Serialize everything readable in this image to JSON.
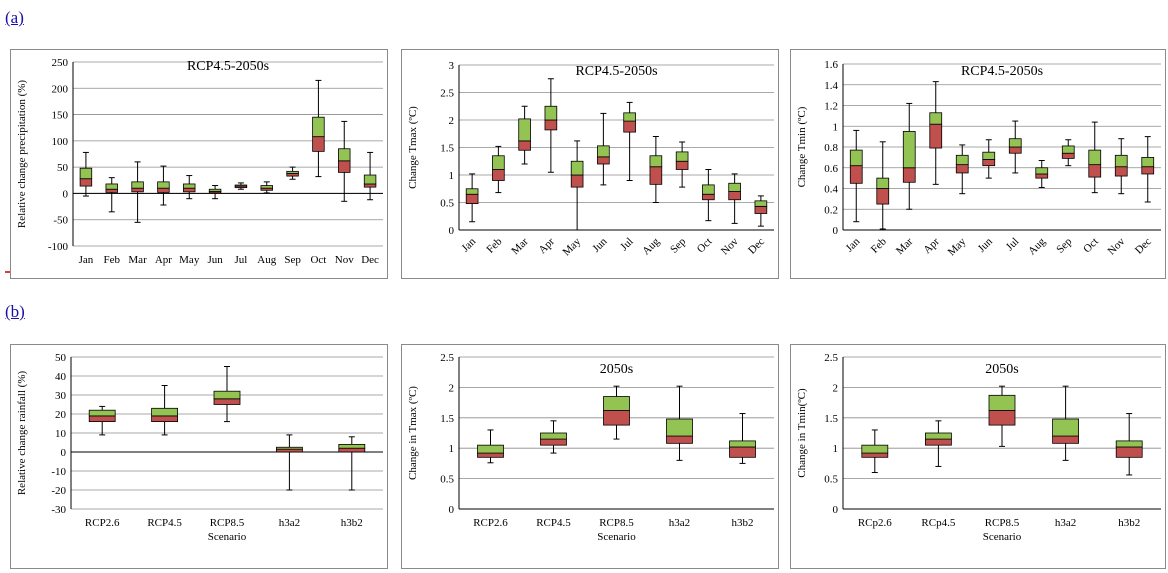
{
  "panels": [
    {
      "label": "(a)"
    },
    {
      "label": "(b)"
    }
  ],
  "chart_data": [
    {
      "type": "box",
      "title": "RCP4.5-2050s",
      "ylabel": "Relative change precipitation (%)",
      "xlabel": "",
      "ylim": [
        -100,
        250
      ],
      "yticks": [
        -100,
        -50,
        0,
        50,
        100,
        150,
        200,
        250
      ],
      "tick_rotate": false,
      "categories": [
        "Jan",
        "Feb",
        "Mar",
        "Apr",
        "May",
        "Jun",
        "Jul",
        "Aug",
        "Sep",
        "Oct",
        "Nov",
        "Dec"
      ],
      "boxes": [
        {
          "min": -5,
          "q1": 14,
          "median": 28,
          "q3": 48,
          "max": 78
        },
        {
          "min": -35,
          "q1": 2,
          "median": 8,
          "q3": 18,
          "max": 30
        },
        {
          "min": -55,
          "q1": 3,
          "median": 10,
          "q3": 22,
          "max": 60
        },
        {
          "min": -22,
          "q1": 2,
          "median": 10,
          "q3": 22,
          "max": 52
        },
        {
          "min": -10,
          "q1": 3,
          "median": 10,
          "q3": 18,
          "max": 34
        },
        {
          "min": -10,
          "q1": 1,
          "median": 4,
          "q3": 8,
          "max": 15
        },
        {
          "min": 8,
          "q1": 11,
          "median": 14,
          "q3": 16,
          "max": 20
        },
        {
          "min": 1,
          "q1": 6,
          "median": 10,
          "q3": 15,
          "max": 22
        },
        {
          "min": 27,
          "q1": 33,
          "median": 38,
          "q3": 42,
          "max": 50
        },
        {
          "min": 32,
          "q1": 80,
          "median": 108,
          "q3": 145,
          "max": 215
        },
        {
          "min": -15,
          "q1": 40,
          "median": 62,
          "q3": 85,
          "max": 137
        },
        {
          "min": -12,
          "q1": 12,
          "median": 18,
          "q3": 35,
          "max": 78
        }
      ]
    },
    {
      "type": "box",
      "title": "RCP4.5-2050s",
      "ylabel": "Change Tmax (ºC)",
      "xlabel": "",
      "ylim": [
        0,
        3
      ],
      "yticks": [
        0,
        0.5,
        1,
        1.5,
        2,
        2.5,
        3
      ],
      "tick_rotate": true,
      "categories": [
        "Jan",
        "Feb",
        "Mar",
        "Apr",
        "May",
        "Jun",
        "Jul",
        "Aug",
        "Sep",
        "Oct",
        "Nov",
        "Dec"
      ],
      "boxes": [
        {
          "min": 0.15,
          "q1": 0.48,
          "median": 0.65,
          "q3": 0.75,
          "max": 1.02
        },
        {
          "min": 0.68,
          "q1": 0.9,
          "median": 1.1,
          "q3": 1.35,
          "max": 1.52
        },
        {
          "min": 1.2,
          "q1": 1.45,
          "median": 1.62,
          "q3": 2.02,
          "max": 2.25
        },
        {
          "min": 1.05,
          "q1": 1.82,
          "median": 2.0,
          "q3": 2.25,
          "max": 2.75
        },
        {
          "min": 0.0,
          "q1": 0.78,
          "median": 1.0,
          "q3": 1.25,
          "max": 1.62
        },
        {
          "min": 0.82,
          "q1": 1.2,
          "median": 1.33,
          "q3": 1.53,
          "max": 2.12
        },
        {
          "min": 0.9,
          "q1": 1.78,
          "median": 1.98,
          "q3": 2.13,
          "max": 2.32
        },
        {
          "min": 0.5,
          "q1": 0.83,
          "median": 1.15,
          "q3": 1.35,
          "max": 1.7
        },
        {
          "min": 0.78,
          "q1": 1.1,
          "median": 1.25,
          "q3": 1.42,
          "max": 1.6
        },
        {
          "min": 0.17,
          "q1": 0.55,
          "median": 0.65,
          "q3": 0.82,
          "max": 1.1
        },
        {
          "min": 0.12,
          "q1": 0.55,
          "median": 0.7,
          "q3": 0.85,
          "max": 1.02
        },
        {
          "min": 0.07,
          "q1": 0.3,
          "median": 0.43,
          "q3": 0.53,
          "max": 0.62
        }
      ]
    },
    {
      "type": "box",
      "title": "RCP4.5-2050s",
      "ylabel": "Change Tmin (ºC)",
      "xlabel": "",
      "ylim": [
        0,
        1.6
      ],
      "yticks": [
        0,
        0.2,
        0.4,
        0.6,
        0.8,
        1,
        1.2,
        1.4,
        1.6
      ],
      "tick_rotate": true,
      "categories": [
        "Jan",
        "Feb",
        "Mar",
        "Apr",
        "May",
        "Jun",
        "Jul",
        "Aug",
        "Sep",
        "Oct",
        "Nov",
        "Dec"
      ],
      "boxes": [
        {
          "min": 0.08,
          "q1": 0.45,
          "median": 0.62,
          "q3": 0.77,
          "max": 0.96
        },
        {
          "min": 0.01,
          "q1": 0.25,
          "median": 0.4,
          "q3": 0.5,
          "max": 0.85
        },
        {
          "min": 0.2,
          "q1": 0.46,
          "median": 0.6,
          "q3": 0.95,
          "max": 1.22
        },
        {
          "min": 0.44,
          "q1": 0.79,
          "median": 1.02,
          "q3": 1.13,
          "max": 1.43
        },
        {
          "min": 0.35,
          "q1": 0.55,
          "median": 0.63,
          "q3": 0.72,
          "max": 0.82
        },
        {
          "min": 0.5,
          "q1": 0.62,
          "median": 0.68,
          "q3": 0.75,
          "max": 0.87
        },
        {
          "min": 0.55,
          "q1": 0.74,
          "median": 0.8,
          "q3": 0.88,
          "max": 1.05
        },
        {
          "min": 0.41,
          "q1": 0.5,
          "median": 0.54,
          "q3": 0.6,
          "max": 0.67
        },
        {
          "min": 0.62,
          "q1": 0.69,
          "median": 0.74,
          "q3": 0.81,
          "max": 0.87
        },
        {
          "min": 0.36,
          "q1": 0.51,
          "median": 0.63,
          "q3": 0.77,
          "max": 1.04
        },
        {
          "min": 0.35,
          "q1": 0.52,
          "median": 0.61,
          "q3": 0.72,
          "max": 0.88
        },
        {
          "min": 0.27,
          "q1": 0.54,
          "median": 0.61,
          "q3": 0.7,
          "max": 0.9
        }
      ]
    },
    {
      "type": "box",
      "title": "",
      "ylabel": "Relative change rainfall (%)",
      "xlabel": "Scenario",
      "ylim": [
        -30,
        50
      ],
      "yticks": [
        -30,
        -20,
        -10,
        0,
        10,
        20,
        30,
        40,
        50
      ],
      "tick_rotate": false,
      "categories": [
        "RCP2.6",
        "RCP4.5",
        "RCP8.5",
        "h3a2",
        "h3b2"
      ],
      "boxes": [
        {
          "min": 9,
          "q1": 16,
          "median": 19,
          "q3": 22,
          "max": 24
        },
        {
          "min": 9,
          "q1": 16,
          "median": 19,
          "q3": 23,
          "max": 35
        },
        {
          "min": 16,
          "q1": 25,
          "median": 28,
          "q3": 32,
          "max": 45
        },
        {
          "min": -20,
          "q1": 0,
          "median": 1.5,
          "q3": 2.5,
          "max": 9
        },
        {
          "min": -20,
          "q1": 0,
          "median": 2,
          "q3": 4,
          "max": 8
        }
      ]
    },
    {
      "type": "box",
      "title": "2050s",
      "ylabel": "Change in Tmax (ºC)",
      "xlabel": "Scenario",
      "ylim": [
        0,
        2.5
      ],
      "yticks": [
        0,
        0.5,
        1,
        1.5,
        2,
        2.5
      ],
      "tick_rotate": false,
      "categories": [
        "RCP2.6",
        "RCP4.5",
        "RCP8.5",
        "h3a2",
        "h3b2"
      ],
      "boxes": [
        {
          "min": 0.76,
          "q1": 0.85,
          "median": 0.92,
          "q3": 1.05,
          "max": 1.3
        },
        {
          "min": 0.92,
          "q1": 1.05,
          "median": 1.15,
          "q3": 1.25,
          "max": 1.45
        },
        {
          "min": 1.15,
          "q1": 1.38,
          "median": 1.62,
          "q3": 1.85,
          "max": 2.02
        },
        {
          "min": 0.8,
          "q1": 1.08,
          "median": 1.2,
          "q3": 1.48,
          "max": 2.02
        },
        {
          "min": 0.75,
          "q1": 0.85,
          "median": 1.02,
          "q3": 1.12,
          "max": 1.57
        }
      ]
    },
    {
      "type": "box",
      "title": "2050s",
      "ylabel": "Change in Tmin(ºC)",
      "xlabel": "Scenario",
      "ylim": [
        0,
        2.5
      ],
      "yticks": [
        0,
        0.5,
        1,
        1.5,
        2,
        2.5
      ],
      "tick_rotate": false,
      "categories": [
        "RCp2.6",
        "RCp4.5",
        "RCP8.5",
        "h3a2",
        "h3b2"
      ],
      "boxes": [
        {
          "min": 0.6,
          "q1": 0.85,
          "median": 0.92,
          "q3": 1.05,
          "max": 1.3
        },
        {
          "min": 0.7,
          "q1": 1.05,
          "median": 1.15,
          "q3": 1.25,
          "max": 1.45
        },
        {
          "min": 1.03,
          "q1": 1.38,
          "median": 1.62,
          "q3": 1.87,
          "max": 2.02
        },
        {
          "min": 0.8,
          "q1": 1.08,
          "median": 1.2,
          "q3": 1.48,
          "max": 2.02
        },
        {
          "min": 0.56,
          "q1": 0.85,
          "median": 1.02,
          "q3": 1.12,
          "max": 1.57
        }
      ]
    }
  ],
  "colors": {
    "upper_box": "#92c353",
    "lower_box": "#c0504d",
    "grid": "#8c8c8c",
    "axis": "#000000"
  }
}
